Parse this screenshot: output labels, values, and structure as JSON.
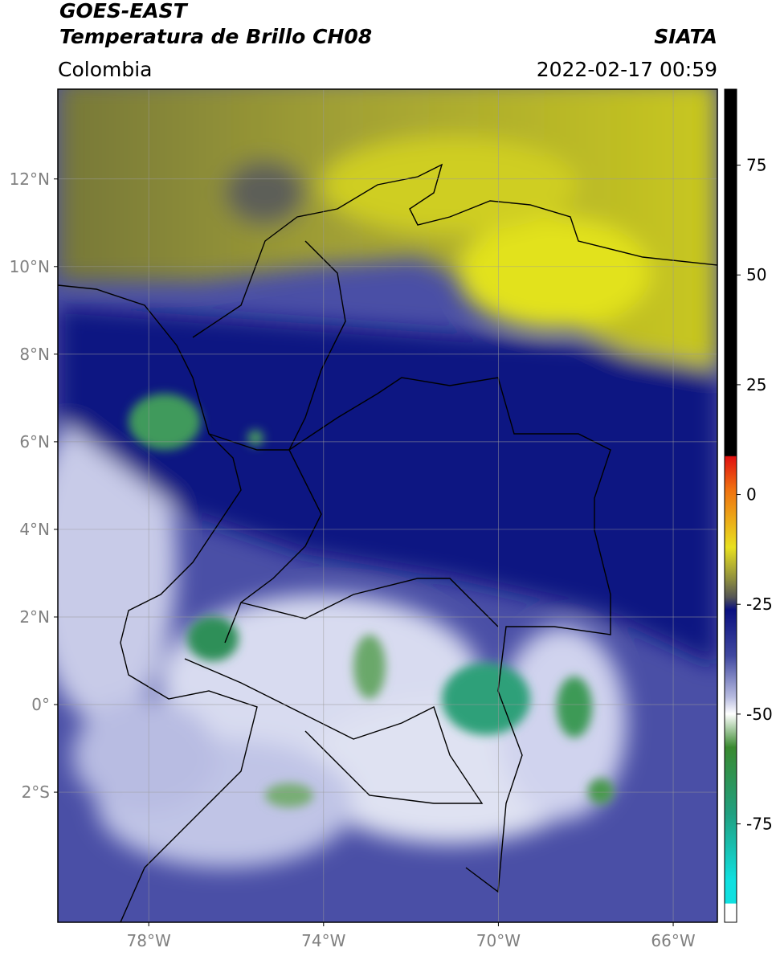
{
  "title": "GOES-EAST",
  "subtitle": "Temperatura de Brillo CH08",
  "region": "Colombia",
  "source": "SIATA",
  "datetime": "2022-02-17 00:59",
  "map": {
    "xlim": [
      -80.08,
      -64.99
    ],
    "ylim": [
      -4.97,
      14.05
    ],
    "xticks": [
      {
        "value": -78,
        "label": "78°W"
      },
      {
        "value": -74,
        "label": "74°W"
      },
      {
        "value": -70,
        "label": "70°W"
      },
      {
        "value": -66,
        "label": "66°W"
      }
    ],
    "yticks": [
      {
        "value": -2,
        "label": "2°S"
      },
      {
        "value": 0,
        "label": "0°"
      },
      {
        "value": 2,
        "label": "2°N"
      },
      {
        "value": 4,
        "label": "4°N"
      },
      {
        "value": 6,
        "label": "6°N"
      },
      {
        "value": 8,
        "label": "8°N"
      },
      {
        "value": 10,
        "label": "10°N"
      },
      {
        "value": 12,
        "label": "12°N"
      }
    ],
    "grid": true
  },
  "colorbar": {
    "lim": [
      -97.4,
      92.3
    ],
    "ticks": [
      -75,
      -50,
      -25,
      0,
      25,
      50,
      75
    ]
  }
}
